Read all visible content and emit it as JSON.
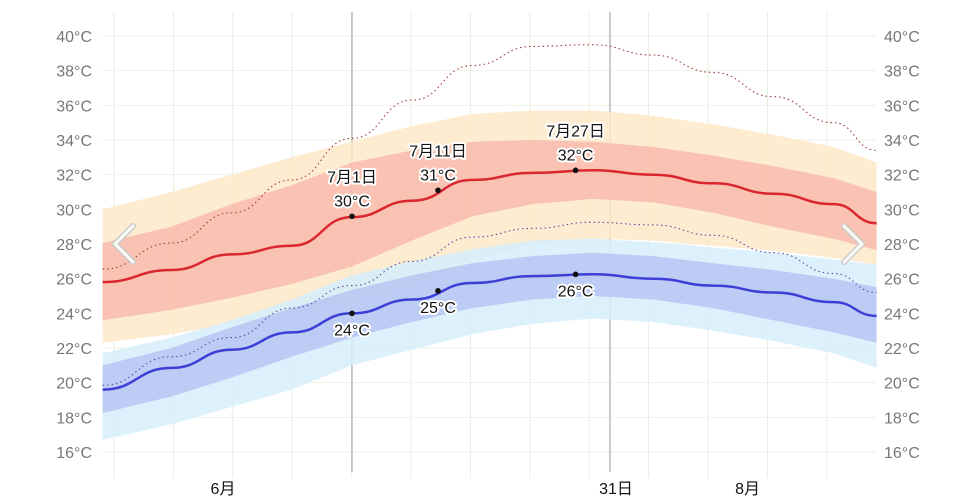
{
  "chart_data": {
    "type": "area",
    "title": "",
    "xlabel": "",
    "ylabel": "",
    "ylim": [
      16,
      40
    ],
    "y_ticks": [
      "16°C",
      "18°C",
      "20°C",
      "22°C",
      "24°C",
      "26°C",
      "28°C",
      "30°C",
      "32°C",
      "34°C",
      "36°C",
      "38°C",
      "40°C"
    ],
    "x_ticks": [
      {
        "date": "06-16",
        "label": "6月"
      },
      {
        "date": "07-31",
        "label": "31日"
      },
      {
        "date": "08-16",
        "label": "8月"
      }
    ],
    "grid": true,
    "current_date_marker": "07-31",
    "x": [
      "06-02",
      "06-10",
      "06-17",
      "06-24",
      "07-01",
      "07-08",
      "07-15",
      "07-22",
      "07-29",
      "08-05",
      "08-12",
      "08-19",
      "08-26",
      "08-31"
    ],
    "series": [
      {
        "key": "high_p10_p90",
        "kind": "band",
        "color": "#fde9c8",
        "upper": [
          30.0,
          31.0,
          32.0,
          33.0,
          33.9,
          34.8,
          35.5,
          35.7,
          35.7,
          35.4,
          34.9,
          34.3,
          33.6,
          32.7
        ],
        "lower": [
          22.3,
          22.8,
          23.4,
          24.0,
          24.5,
          25.5,
          27.0,
          28.0,
          28.3,
          28.2,
          27.9,
          27.6,
          27.2,
          26.8
        ]
      },
      {
        "key": "low_p10_p90",
        "kind": "band",
        "color": "#d6effb",
        "upper": [
          21.7,
          22.6,
          23.6,
          24.8,
          26.2,
          27.0,
          27.7,
          28.2,
          28.3,
          28.1,
          27.8,
          27.5,
          27.1,
          26.8
        ],
        "lower": [
          16.7,
          17.6,
          18.6,
          19.6,
          21.0,
          21.9,
          22.8,
          23.4,
          23.7,
          23.5,
          23.0,
          22.4,
          21.7,
          20.85
        ]
      },
      {
        "key": "high_p25_p75",
        "kind": "band",
        "color": "#f7b4a8",
        "upper": [
          28.05,
          29.0,
          30.3,
          31.4,
          32.7,
          33.4,
          33.9,
          34.0,
          33.9,
          33.6,
          33.1,
          32.5,
          31.8,
          31.0
        ],
        "lower": [
          23.6,
          24.2,
          24.9,
          25.7,
          26.7,
          28.2,
          29.6,
          30.3,
          30.6,
          30.4,
          29.8,
          29.0,
          28.3,
          27.65
        ]
      },
      {
        "key": "low_p25_p75",
        "kind": "band",
        "color": "#b3bff2",
        "upper": [
          21.0,
          22.0,
          23.2,
          24.3,
          25.35,
          26.2,
          26.9,
          27.3,
          27.5,
          27.3,
          26.9,
          26.5,
          26.0,
          25.5
        ],
        "lower": [
          18.25,
          19.2,
          20.3,
          21.5,
          22.6,
          23.5,
          24.3,
          24.8,
          25.0,
          24.8,
          24.3,
          23.6,
          22.9,
          22.3
        ]
      },
      {
        "key": "avg_high",
        "kind": "line",
        "color": "#d9262f",
        "values": [
          25.8,
          26.5,
          27.4,
          27.9,
          29.55,
          30.5,
          31.7,
          32.1,
          32.25,
          32.0,
          31.5,
          30.9,
          30.3,
          29.2
        ]
      },
      {
        "key": "avg_low",
        "kind": "line",
        "color": "#3c3fd6",
        "values": [
          19.6,
          20.85,
          21.9,
          22.9,
          24.0,
          24.8,
          25.75,
          26.15,
          26.25,
          26.0,
          25.6,
          25.2,
          24.65,
          23.85
        ]
      },
      {
        "key": "high_dotted",
        "kind": "dotted",
        "color": "#a33a3a",
        "values": [
          26.55,
          28.05,
          29.8,
          31.7,
          34.1,
          36.3,
          38.3,
          39.4,
          39.5,
          38.9,
          37.9,
          36.5,
          35.0,
          33.4
        ]
      },
      {
        "key": "low_dotted",
        "kind": "dotted",
        "color": "#5a4aa8",
        "values": [
          19.85,
          21.5,
          22.6,
          24.3,
          25.6,
          27.0,
          28.4,
          28.9,
          29.25,
          29.1,
          28.5,
          27.5,
          26.3,
          25.2
        ]
      }
    ],
    "annotations": [
      {
        "date": "07-01",
        "value": 29.6,
        "series": "avg_high",
        "label1": "7月1日",
        "label2": "30°C",
        "pos": "above"
      },
      {
        "date": "07-11",
        "value": 31.1,
        "series": "avg_high",
        "label1": "7月11日",
        "label2": "31°C",
        "pos": "above"
      },
      {
        "date": "07-27",
        "value": 32.25,
        "series": "avg_high",
        "label1": "7月27日",
        "label2": "32°C",
        "pos": "above"
      },
      {
        "date": "07-01",
        "value": 24.0,
        "series": "avg_low",
        "label1": "",
        "label2": "24°C",
        "pos": "below"
      },
      {
        "date": "07-11",
        "value": 25.3,
        "series": "avg_low",
        "label1": "",
        "label2": "25°C",
        "pos": "below"
      },
      {
        "date": "07-27",
        "value": 26.25,
        "series": "avg_low",
        "label1": "",
        "label2": "26°C",
        "pos": "below"
      }
    ]
  },
  "nav": {
    "prev_icon": "chevron-left-icon",
    "next_icon": "chevron-right-icon"
  }
}
